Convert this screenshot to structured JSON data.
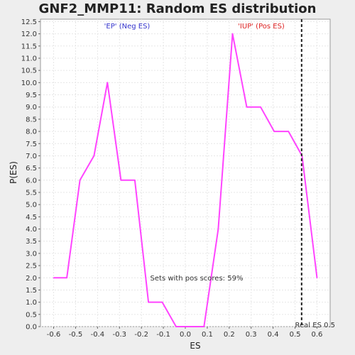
{
  "chart_data": {
    "type": "line",
    "title": "GNF2_MMP11: Random ES distribution",
    "xlabel": "ES",
    "ylabel": "P(ES)",
    "xlim": [
      -0.66,
      0.66
    ],
    "ylim": [
      0,
      12.6
    ],
    "x_ticks": [
      -0.6,
      -0.5,
      -0.4,
      -0.3,
      -0.2,
      -0.1,
      0.0,
      0.1,
      0.2,
      0.3,
      0.4,
      0.5,
      0.6
    ],
    "x_tick_labels": [
      "-0.6",
      "-0.5",
      "-0.4",
      "-0.3",
      "-0.2",
      "-0.1",
      "0.0",
      "0.1",
      "0.2",
      "0.3",
      "0.4",
      "0.5",
      "0.6"
    ],
    "y_ticks": [
      0,
      0.5,
      1,
      1.5,
      2,
      2.5,
      3,
      3.5,
      4,
      4.5,
      5,
      5.5,
      6,
      6.5,
      7,
      7.5,
      8,
      8.5,
      9,
      9.5,
      10,
      10.5,
      11,
      11.5,
      12,
      12.5
    ],
    "y_tick_labels": [
      "0.0",
      "0.5",
      "1.0",
      "1.5",
      "2.0",
      "2.5",
      "3.0",
      "3.5",
      "4.0",
      "4.5",
      "5.0",
      "5.5",
      "6.0",
      "6.5",
      "7.0",
      "7.5",
      "8.0",
      "8.5",
      "9.0",
      "9.5",
      "10.0",
      "10.5",
      "11.0",
      "11.5",
      "12.0",
      "12.5"
    ],
    "grid": true,
    "series": [
      {
        "color": "#ff44ff",
        "x": [
          -0.6,
          -0.54,
          -0.48,
          -0.416,
          -0.355,
          -0.293,
          -0.23,
          -0.168,
          -0.105,
          -0.042,
          0.02,
          0.085,
          0.15,
          0.215,
          0.28,
          0.343,
          0.405,
          0.47,
          0.532,
          0.6
        ],
        "y": [
          2.0,
          2.0,
          6.0,
          7.0,
          10.0,
          6.0,
          6.0,
          1.0,
          1.0,
          0.0,
          0.0,
          0.0,
          4.0,
          12.0,
          9.0,
          9.0,
          8.0,
          8.0,
          7.0,
          2.0
        ]
      }
    ],
    "real_es": 0.53,
    "annotations": {
      "neg_label": "'EP' (Neg ES)",
      "neg_color": "#3333cc",
      "pos_label": "'IUP' (Pos ES)",
      "pos_color": "#dd2222",
      "pos_scores": "Sets with pos scores: 59%",
      "real_es_label": "Real ES 0.5"
    }
  }
}
